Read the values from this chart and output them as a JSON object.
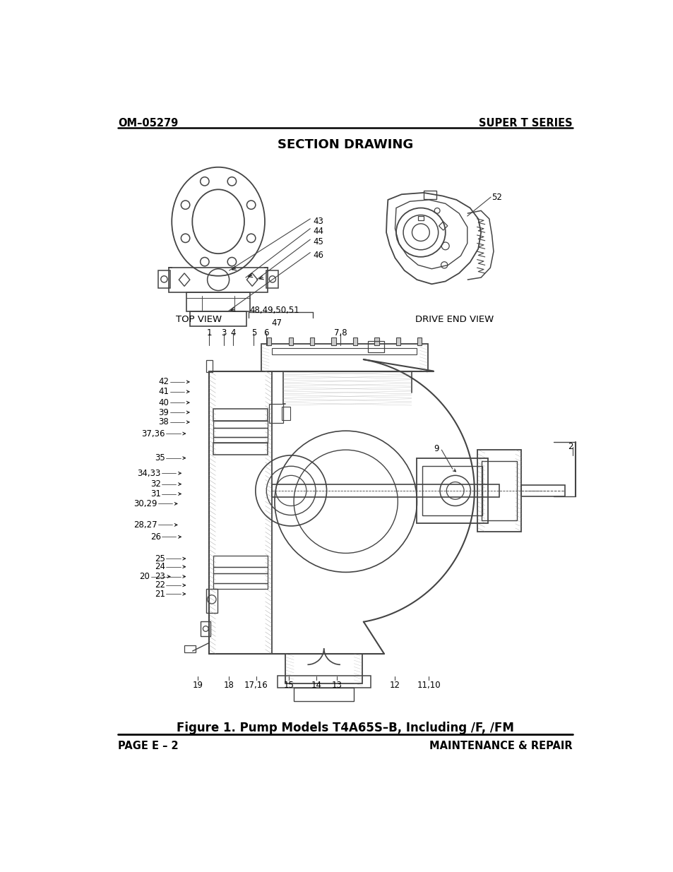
{
  "header_left": "OM–05279",
  "header_right": "SUPER T SERIES",
  "section_title": "SECTION DRAWING",
  "figure_caption": "Figure 1. Pump Models T4A65S–B, Including /F, /FM",
  "footer_left": "PAGE E – 2",
  "footer_right": "MAINTENANCE & REPAIR",
  "bg_color": "#ffffff",
  "text_color": "#000000",
  "top_view_label": "TOP VIEW",
  "drive_end_label": "DRIVE END VIEW",
  "label_47": "47",
  "label_48": "48,49,50,51",
  "label_52": "52",
  "label_43": "43",
  "label_44": "44",
  "label_45": "45",
  "label_46": "46",
  "label_9": "9",
  "label_2": "2",
  "label_1": "1",
  "top_labels": [
    [
      "1",
      228
    ],
    [
      "3",
      255
    ],
    [
      "4",
      272
    ],
    [
      "5",
      310
    ],
    [
      "6",
      333
    ],
    [
      "7,8",
      468
    ]
  ],
  "left_labels": [
    [
      "42",
      155,
      510
    ],
    [
      "41",
      155,
      528
    ],
    [
      "40",
      155,
      548
    ],
    [
      "39",
      155,
      566
    ],
    [
      "38",
      155,
      584
    ],
    [
      "37,36",
      148,
      605
    ],
    [
      "35",
      148,
      650
    ],
    [
      "34,33",
      140,
      678
    ],
    [
      "32",
      140,
      698
    ],
    [
      "31",
      140,
      716
    ],
    [
      "30,29",
      133,
      734
    ],
    [
      "28,27",
      133,
      773
    ],
    [
      "26",
      140,
      795
    ],
    [
      "25",
      148,
      835
    ],
    [
      "24",
      148,
      850
    ],
    [
      "20",
      120,
      868
    ],
    [
      "23",
      148,
      868
    ],
    [
      "22",
      148,
      884
    ],
    [
      "21",
      148,
      900
    ]
  ],
  "bottom_labels": [
    [
      "19",
      208,
      1060
    ],
    [
      "18",
      264,
      1060
    ],
    [
      "17,16",
      314,
      1060
    ],
    [
      "15",
      374,
      1060
    ],
    [
      "14",
      424,
      1060
    ],
    [
      "13",
      462,
      1060
    ],
    [
      "12",
      567,
      1060
    ],
    [
      "11,10",
      630,
      1060
    ]
  ]
}
